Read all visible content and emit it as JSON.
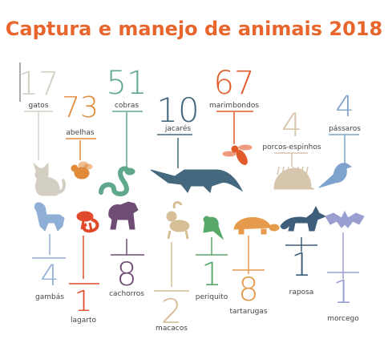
{
  "title": "Captura e manejo de animais 2018",
  "colors": {
    "title": "#E8662E",
    "text": "#444444"
  },
  "chart_data": {
    "type": "bar",
    "title": "Captura e manejo de animais 2018",
    "categories": [
      "gatos",
      "abelhas",
      "cobras",
      "jacarés",
      "marimbondos",
      "porcos-espinhos",
      "pássaros",
      "gambás",
      "lagarto",
      "cachorros",
      "macacos",
      "periquito",
      "tartarugas",
      "raposa",
      "morcego"
    ],
    "values": [
      17,
      73,
      51,
      10,
      67,
      4,
      4,
      4,
      1,
      8,
      2,
      1,
      8,
      1,
      1
    ],
    "items": [
      {
        "label": "gatos",
        "value": 17,
        "color": "#D3CFC3",
        "icon": "cat-icon"
      },
      {
        "label": "abelhas",
        "value": 73,
        "color": "#E08A3A",
        "icon": "bee-icon"
      },
      {
        "label": "cobras",
        "value": 51,
        "color": "#5FA88C",
        "icon": "snake-icon"
      },
      {
        "label": "jacarés",
        "value": 10,
        "color": "#44687E",
        "icon": "alligator-icon"
      },
      {
        "label": "marimbondos",
        "value": 67,
        "color": "#E05A2A",
        "icon": "wasp-icon"
      },
      {
        "label": "porcos-espinhos",
        "value": 4,
        "color": "#D7C6AE",
        "icon": "porcupine-icon"
      },
      {
        "label": "pássaros",
        "value": 4,
        "color": "#7EA3CC",
        "icon": "bird-icon"
      },
      {
        "label": "gambás",
        "value": 4,
        "color": "#8FAFD6",
        "icon": "skunk-icon"
      },
      {
        "label": "lagarto",
        "value": 1,
        "color": "#E04A2A",
        "icon": "lizard-icon"
      },
      {
        "label": "cachorros",
        "value": 8,
        "color": "#6E4C74",
        "icon": "dog-icon"
      },
      {
        "label": "macacos",
        "value": 2,
        "color": "#D6BE96",
        "icon": "monkey-icon"
      },
      {
        "label": "periquito",
        "value": 1,
        "color": "#58A86A",
        "icon": "parakeet-icon"
      },
      {
        "label": "tartarugas",
        "value": 8,
        "color": "#E69A4C",
        "icon": "turtle-icon"
      },
      {
        "label": "raposa",
        "value": 1,
        "color": "#3F5E7C",
        "icon": "fox-icon"
      },
      {
        "label": "morcego",
        "value": 1,
        "color": "#9A9ED0",
        "icon": "bat-icon"
      }
    ]
  }
}
